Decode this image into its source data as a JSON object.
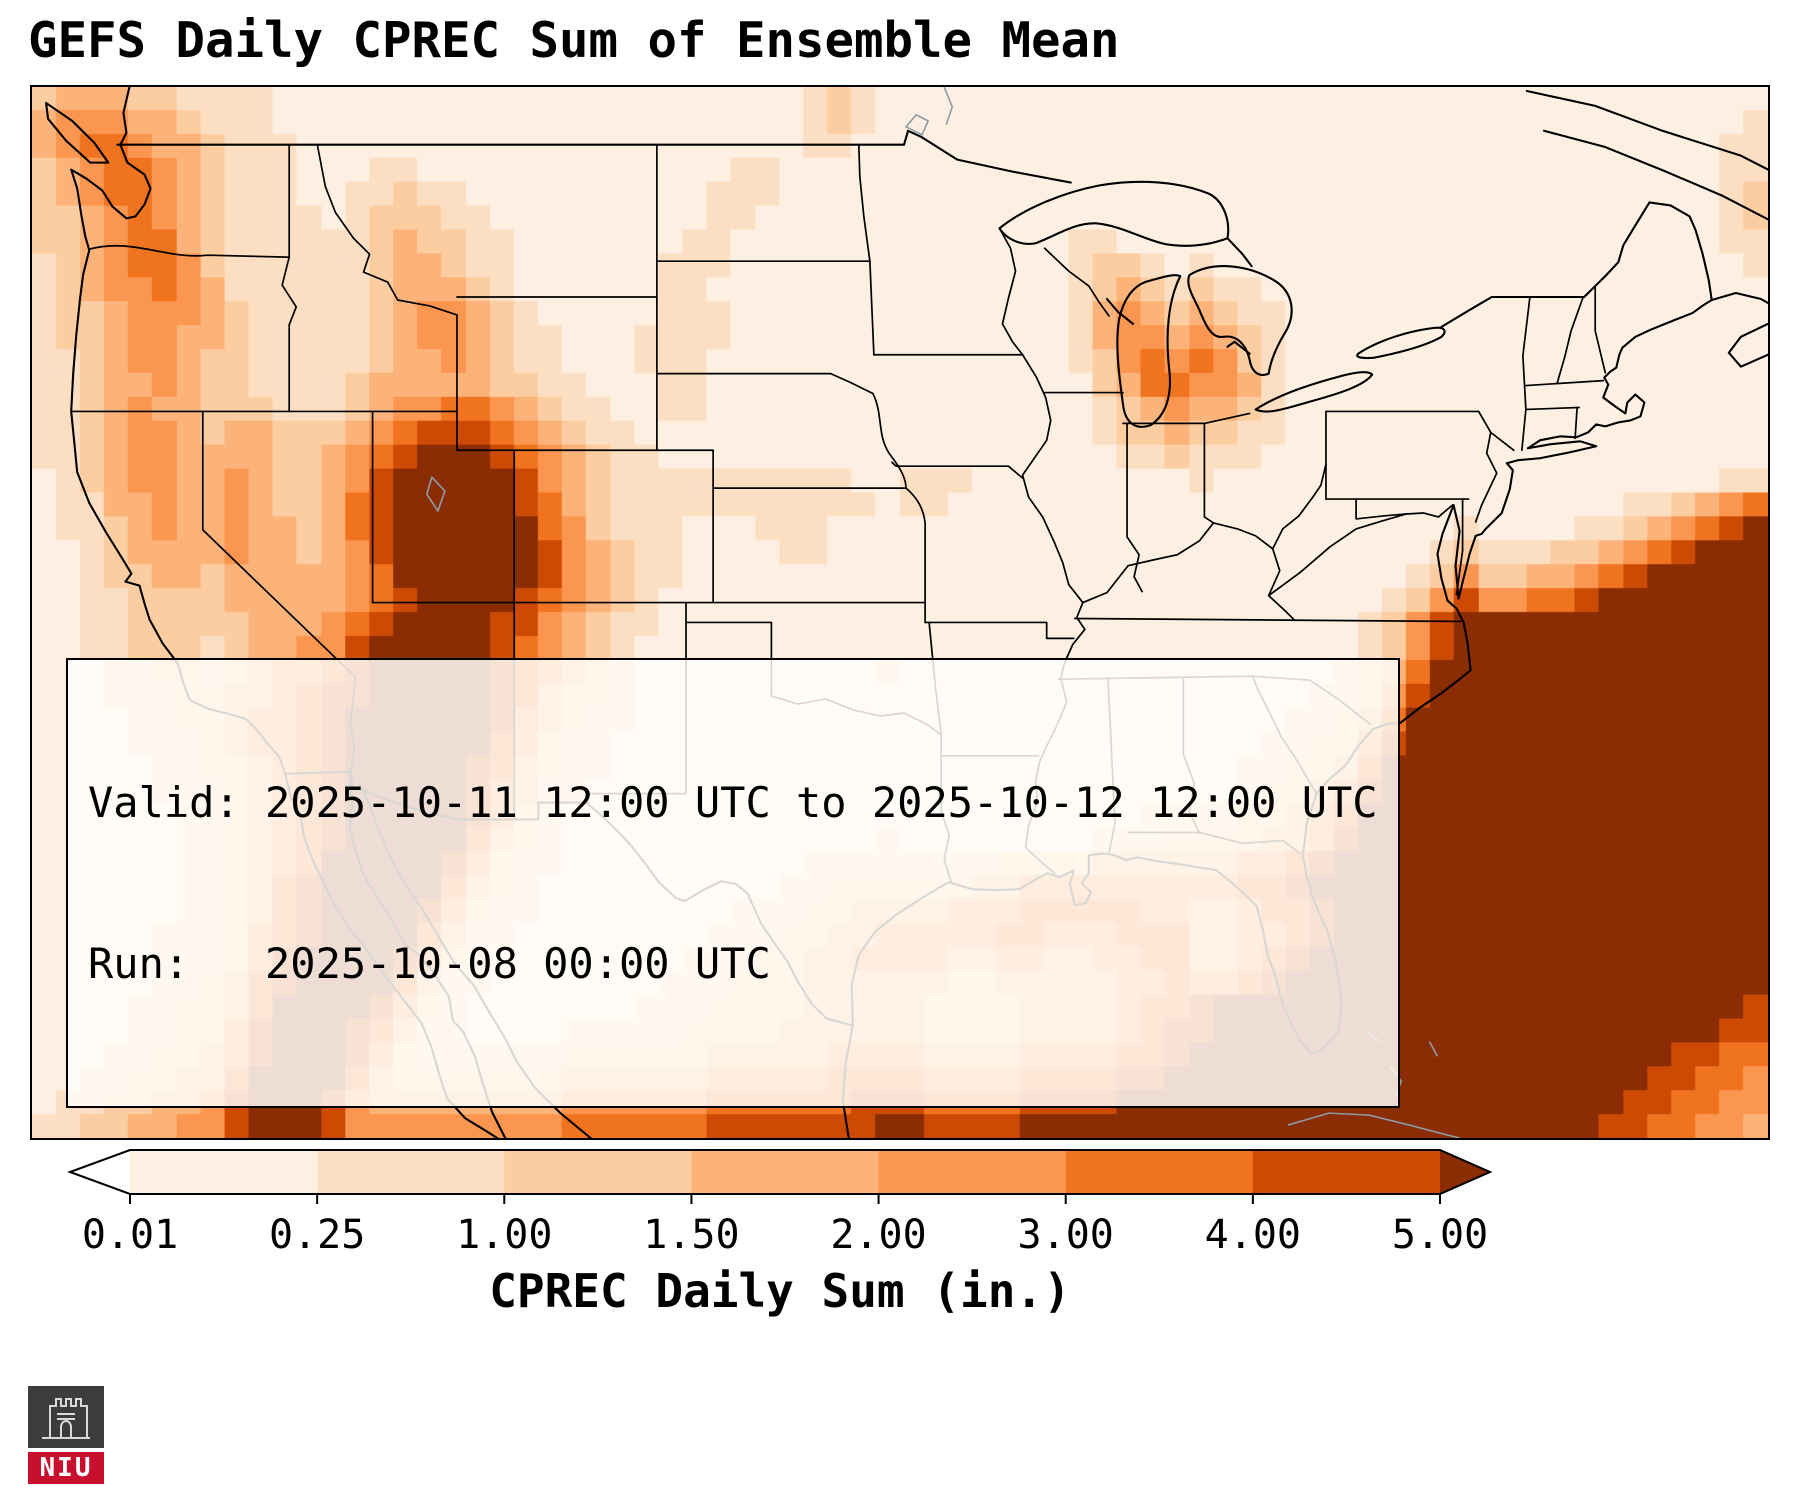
{
  "title": "GEFS Daily CPREC Sum of Ensemble Mean",
  "info_box": {
    "valid_line": "Valid: 2025-10-11 12:00 UTC to 2025-10-12 12:00 UTC",
    "run_line": "Run:   2025-10-08 00:00 UTC"
  },
  "colorbar": {
    "label": "CPREC Daily Sum (in.)",
    "ticks": [
      "0.01",
      "0.25",
      "1.00",
      "1.50",
      "2.00",
      "3.00",
      "4.00",
      "5.00"
    ],
    "under_color": "#ffffff",
    "over_color": "#8a2d04",
    "segment_colors": [
      "#fdf0e2",
      "#fcdfc2",
      "#fccda1",
      "#fcb379",
      "#fb9650",
      "#f0741f",
      "#cd4a05"
    ]
  },
  "logo": {
    "text": "NIU",
    "bar_color": "#c8102e"
  },
  "chart_data": {
    "type": "heatmap",
    "title": "GEFS Daily CPREC Sum of Ensemble Mean",
    "variable": "CPREC Daily Sum",
    "units": "in.",
    "valid": "2025-10-11 12:00 UTC to 2025-10-12 12:00 UTC",
    "run": "2025-10-08 00:00 UTC",
    "colormap": "Oranges (white to dark brown)",
    "levels": [
      0.01,
      0.25,
      1.0,
      1.5,
      2.0,
      3.0,
      4.0,
      5.0
    ],
    "colorbar_extend": "both",
    "legend_position": "bottom",
    "grid_cols": 72,
    "grid_rows": 44,
    "palette": {
      ".": "#ffffff",
      "1": "#fdf0e2",
      "2": "#fcdfc2",
      "3": "#fccda1",
      "4": "#fcb379",
      "5": "#fb9650",
      "6": "#f0741f",
      "7": "#cd4a05",
      "8": "#8a2d04"
    },
    "bin_values": {
      ".": "< 0.01",
      "1": "0.01-0.25",
      "2": "0.25-1.00",
      "3": "1.00-1.50",
      "4": "1.50-2.00",
      "5": "2.00-3.00",
      "6": "3.00-4.00",
      "7": "4.00-5.00",
      "8": "> 5.00"
    },
    "grid": [
      "344433222211111111111111111111112321111111111111111111111111111111111111",
      "455544322211111111111111111111112321111111111111111111111111111111111112",
      "456654432221111111111111111111112211111111111111111111111111111111111122",
      "345665432221112211111111111112211111111111111111111111111111111111111122",
      "345665432221122322111111111122211111111111111111111111111111111111111123",
      "334565432222123332211111111122111111111111111111111111111111111111111123",
      "334566432222223433221111111221111111111111122111111111111111111111111122",
      "234566532222223443221111112221111111111111123321211111111111111111111112",
      "234556542222223444321111112211111111111111123432322111111111111111111111",
      "233455543222223455432111112221111111111111124543432211111111111111111111",
      "233455443222223455432211122221111111111111124554543211111111111111111111",
      "223455433222223445432211122211111111111111123565653211111111111111111111",
      "223445433222234444433221112211111111111111113466554211111111111111111111",
      "223454433322234556654322112211111111111111112345443211111111111111111111",
      "223455434433345677765432211111111111111111112334332211111111111111111111",
      "223455444433456788876543221111111111111111111223222111111111111111111111",
      "123455445433457888887543222222222211222111111111211111111111111111111122",
      "122445445433467888887643222222222221221111111111111111111111111111223456",
      "122345445443467888888653222111222111111111111111111111111112111122345678",
      "112344445443457888888754322111122111111111111111111111111123222334567888",
      "112334434444456888888754322111111111111111111111111111111235334456788888",
      "112233334444456788887654321111111111111111111111111111112357556678888888",
      "112233333444567888877543221111111111111111111111111111123578888888888888",
      "112233323445578888876543211111111111111111111111111111123578888888888888",
      "111223323455678888876543211111111112111111111111111111234688888888888888",
      "111222334456778888876433211111111111111111111111111112235788888888888888",
      "111122334556788888875432211111111111111111111111111122346888888888888888",
      "111122234556788888865322111111111111111111111111111223357888888888888888",
      "111112233456788888764322111111111111111111111111112233468888888888888888",
      "111112223456788888754221111111111111111111111111112334578888888888888888",
      "111111223456788888753211111111111111111111111122223345688888888888888888",
      "111111223456788888643211111111111112111111112223333445788888888888888888",
      "111111223456888887532211111111112222222233334444445567888888888888888888",
      "111111223467888886432111111111122333333445555555556678888888888888888888",
      "111111223467888875322111111112223344445556666655445667888888888888888888",
      "111112223567888864221111111122233445555566555666445567888888888888888888",
      "111112223578888753211111111222334455554455445566445678888888888888888888",
      "111112234678888642211111112223334444443344444556556788888888888888888888",
      "111122334688887532111111122233334444433334444566788888888888888888888887",
      "111122335788876422111122222333344444433334444567788888888888888888888877",
      "111223345788875322222233333344444555544445555667888888888888888888887766",
      "112233446888864333333344444455555666655556666778888888888888888888877665",
      "122334457888754444444455555566666677766667777888888888888888888888776655",
      "223344557888755555555566666677777778877778888888888888888888888887766554"
    ]
  }
}
